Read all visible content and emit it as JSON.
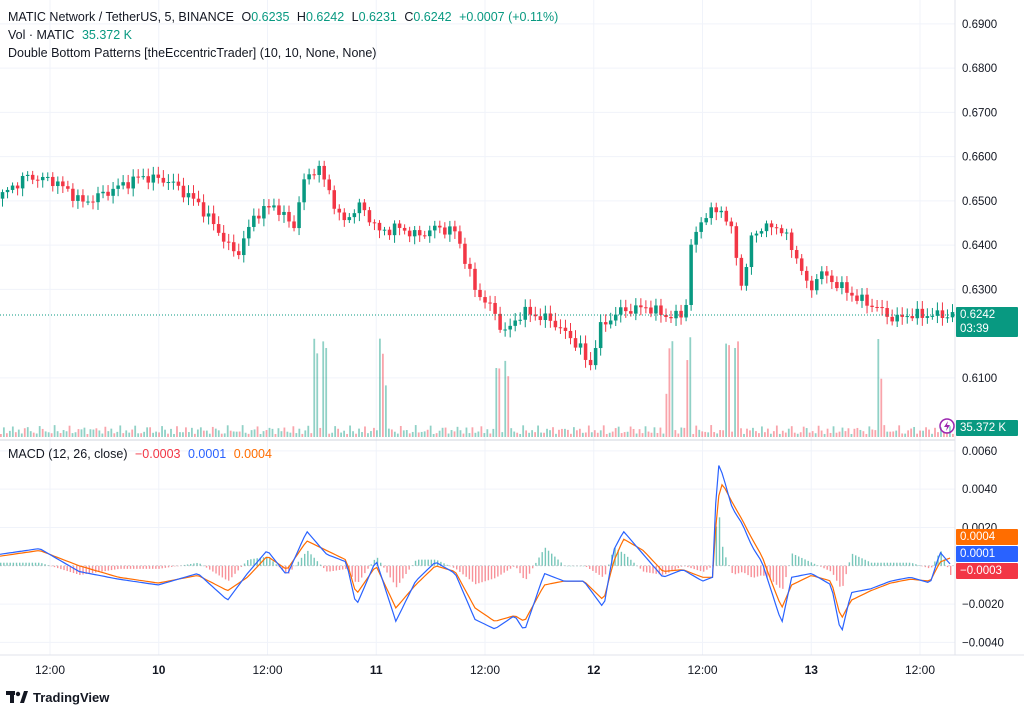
{
  "header": {
    "symbol": "MATIC Network / TetherUS, 5, BINANCE",
    "o_label": "O",
    "o_value": "0.6235",
    "h_label": "H",
    "h_value": "0.6242",
    "l_label": "L",
    "l_value": "0.6231",
    "c_label": "C",
    "c_value": "0.6242",
    "change": "+0.0007 (+0.11%)",
    "vol_label": "Vol · MATIC",
    "vol_value": "35.372 K",
    "indicator": "Double Bottom Patterns [theEccentricTrader] (10, 10, None, None)"
  },
  "macd_legend": {
    "label": "MACD (12, 26, close)",
    "hist": "−0.0003",
    "macd": "0.0001",
    "signal": "0.0004"
  },
  "price_tags": {
    "last_price": "0.6242",
    "countdown": "03:39",
    "volume": "35.372 K",
    "macd_signal": "0.0004",
    "macd_line": "0.0001",
    "macd_hist": "−0.0003"
  },
  "colors": {
    "up": "#089981",
    "down": "#f23645",
    "macd": "#2962ff",
    "signal": "#ff6d00",
    "grid": "#f0f3fa",
    "text": "#131722"
  },
  "branding": {
    "logo_text": "TradingView",
    "logo_icon": "tradingview-logo-icon"
  },
  "chart_data": [
    {
      "type": "candlestick",
      "title": "MATIC Network / TetherUS, 5, BINANCE",
      "price_axis": [
        "0.6900",
        "0.6800",
        "0.6700",
        "0.6600",
        "0.6500",
        "0.6400",
        "0.6300",
        "0.6100"
      ],
      "ylim": [
        0.605,
        0.692
      ],
      "x_ticks": [
        "12:00",
        "10",
        "12:00",
        "11",
        "12:00",
        "12",
        "12:00",
        "13",
        "12:00"
      ],
      "close_path": {
        "x": [
          0,
          0.03,
          0.06,
          0.09,
          0.12,
          0.15,
          0.18,
          0.21,
          0.24,
          0.25,
          0.27,
          0.29,
          0.31,
          0.32,
          0.335,
          0.35,
          0.36,
          0.38,
          0.4,
          0.42,
          0.44,
          0.46,
          0.48,
          0.5,
          0.52,
          0.53,
          0.535,
          0.55,
          0.58,
          0.61,
          0.62,
          0.63,
          0.65,
          0.68,
          0.7,
          0.72,
          0.725,
          0.74,
          0.76,
          0.77,
          0.78,
          0.79,
          0.8,
          0.82,
          0.84,
          0.85,
          0.86,
          0.88,
          0.9,
          0.92,
          0.94,
          0.95
        ],
        "close": [
          0.6505,
          0.6555,
          0.6545,
          0.6495,
          0.6525,
          0.6555,
          0.6545,
          0.6495,
          0.6405,
          0.6375,
          0.647,
          0.649,
          0.644,
          0.654,
          0.658,
          0.651,
          0.645,
          0.649,
          0.643,
          0.644,
          0.642,
          0.644,
          0.643,
          0.63,
          0.625,
          0.62,
          0.621,
          0.625,
          0.623,
          0.617,
          0.612,
          0.621,
          0.625,
          0.626,
          0.624,
          0.624,
          0.639,
          0.647,
          0.648,
          0.642,
          0.63,
          0.642,
          0.644,
          0.644,
          0.636,
          0.629,
          0.634,
          0.631,
          0.628,
          0.626,
          0.623,
          0.6242
        ]
      },
      "volume_spikes": [
        0.33,
        0.34,
        0.4,
        0.52,
        0.53,
        0.7,
        0.72,
        0.76,
        0.77,
        0.92
      ]
    },
    {
      "type": "line",
      "title": "MACD (12, 26, close)",
      "value_axis": [
        "0.0060",
        "0.0040",
        "0.0020",
        "−0.0020",
        "−0.0040"
      ],
      "ylim": [
        -0.0045,
        0.0062
      ],
      "x": [
        0,
        0.04,
        0.08,
        0.12,
        0.16,
        0.2,
        0.23,
        0.25,
        0.27,
        0.29,
        0.31,
        0.33,
        0.35,
        0.36,
        0.38,
        0.4,
        0.42,
        0.44,
        0.46,
        0.48,
        0.5,
        0.52,
        0.53,
        0.55,
        0.57,
        0.59,
        0.61,
        0.62,
        0.63,
        0.65,
        0.67,
        0.69,
        0.71,
        0.72,
        0.725,
        0.73,
        0.74,
        0.75,
        0.76,
        0.77,
        0.78,
        0.79,
        0.8,
        0.82,
        0.84,
        0.85,
        0.86,
        0.88,
        0.9,
        0.92,
        0.94,
        0.95,
        0.96
      ],
      "series": [
        {
          "name": "MACD",
          "values": [
            0.0006,
            0.0009,
            -0.0003,
            -0.0007,
            -0.001,
            -0.0004,
            -0.0018,
            -0.0004,
            0.0008,
            -0.0005,
            0.0018,
            0.0006,
            0.0002,
            -0.0021,
            0.0003,
            -0.0029,
            -0.0008,
            0.0002,
            -0.0004,
            -0.0028,
            -0.0033,
            -0.0026,
            -0.0034,
            -0.0004,
            -0.0008,
            -0.0008,
            -0.0022,
            0.0008,
            0.0018,
            0.0006,
            -0.0006,
            -0.0002,
            -0.0008,
            -0.0006,
            0.0054,
            0.0048,
            0.003,
            0.0022,
            0.001,
            0.0002,
            -0.0014,
            -0.003,
            -0.0006,
            -0.0004,
            -0.001,
            -0.0036,
            -0.0014,
            -0.0012,
            -0.0008,
            -0.0006,
            -0.0009,
            0.0007,
            0.0001
          ]
        },
        {
          "name": "Signal",
          "values": [
            0.0005,
            0.0008,
            0.0,
            -0.0006,
            -0.0009,
            -0.0005,
            -0.0013,
            -0.0006,
            0.0005,
            -0.0002,
            0.0013,
            0.0008,
            0.0003,
            -0.0015,
            0.0,
            -0.0022,
            -0.001,
            0.0,
            -0.0003,
            -0.0022,
            -0.0029,
            -0.0026,
            -0.0029,
            -0.001,
            -0.0008,
            -0.0008,
            -0.0018,
            0.0002,
            0.0014,
            0.0008,
            -0.0003,
            -0.0002,
            -0.0006,
            -0.0006,
            0.0034,
            0.0043,
            0.0033,
            0.0024,
            0.0014,
            0.0005,
            -0.0009,
            -0.0022,
            -0.001,
            -0.0005,
            -0.0008,
            -0.0028,
            -0.0018,
            -0.0013,
            -0.0009,
            -0.0007,
            -0.0008,
            0.0002,
            0.0004
          ]
        }
      ]
    }
  ]
}
